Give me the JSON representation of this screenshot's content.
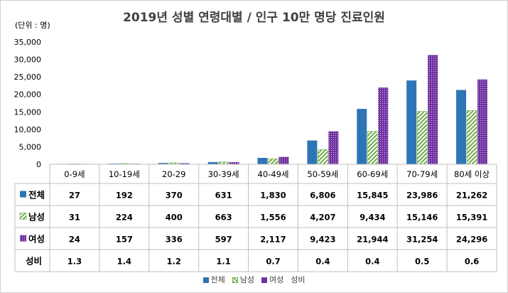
{
  "title": "2019년 성별 연령대별 / 인구 10만 명당 진료인원",
  "unit": "(단위 : 명)",
  "chart_data": {
    "type": "bar",
    "categories": [
      "0-9세",
      "10-19세",
      "20-29",
      "30-39세",
      "40-49세",
      "50-59세",
      "60-69세",
      "70-79세",
      "80세 이상"
    ],
    "ylim": [
      0,
      35000
    ],
    "yticks": [
      "35,000",
      "30,000",
      "25,000",
      "20,000",
      "15,000",
      "10,000",
      "5,000",
      "0"
    ],
    "grid": false,
    "legend_position": "bottom",
    "series": [
      {
        "name": "전체",
        "color": "#2e75b6",
        "values": [
          27,
          192,
          370,
          631,
          1830,
          6806,
          15845,
          23986,
          21262
        ],
        "labels": [
          "27",
          "192",
          "370",
          "631",
          "1,830",
          "6,806",
          "15,845",
          "23,986",
          "21,262"
        ]
      },
      {
        "name": "남성",
        "color": "#70ad47",
        "pattern": "diagonal-stripes",
        "values": [
          31,
          224,
          400,
          663,
          1556,
          4207,
          9434,
          15146,
          15391
        ],
        "labels": [
          "31",
          "224",
          "400",
          "663",
          "1,556",
          "4,207",
          "9,434",
          "15,146",
          "15,391"
        ]
      },
      {
        "name": "여성",
        "color": "#7030a0",
        "pattern": "dots",
        "values": [
          24,
          157,
          336,
          597,
          2117,
          9423,
          21944,
          31254,
          24296
        ],
        "labels": [
          "24",
          "157",
          "336",
          "597",
          "2,117",
          "9,423",
          "21,944",
          "31,254",
          "24,296"
        ]
      },
      {
        "name": "성비",
        "values": [
          1.3,
          1.4,
          1.2,
          1.1,
          0.7,
          0.4,
          0.4,
          0.5,
          0.6
        ],
        "labels": [
          "1.3",
          "1.4",
          "1.2",
          "1.1",
          "0.7",
          "0.4",
          "0.4",
          "0.5",
          "0.6"
        ]
      }
    ]
  }
}
